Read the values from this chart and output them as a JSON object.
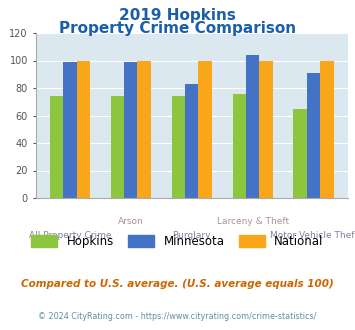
{
  "title_line1": "2019 Hopkins",
  "title_line2": "Property Crime Comparison",
  "categories": [
    "All Property Crime",
    "Arson",
    "Burglary",
    "Larceny & Theft",
    "Motor Vehicle Theft"
  ],
  "row1_labels": [
    "",
    "Arson",
    "",
    "Larceny & Theft",
    ""
  ],
  "row2_labels": [
    "All Property Crime",
    "",
    "Burglary",
    "",
    "Motor Vehicle Theft"
  ],
  "hopkins": [
    74,
    74,
    74,
    76,
    65
  ],
  "minnesota": [
    99,
    99,
    83,
    104,
    91
  ],
  "national": [
    100,
    100,
    100,
    100,
    100
  ],
  "colors": {
    "hopkins": "#8cc63f",
    "minnesota": "#4472c4",
    "national": "#faa61a"
  },
  "ylim": [
    0,
    120
  ],
  "yticks": [
    0,
    20,
    40,
    60,
    80,
    100,
    120
  ],
  "title_color": "#1a5fa8",
  "row1_color": "#b09090",
  "row2_color": "#8080a8",
  "background_color": "#dce8ef",
  "legend_labels": [
    "Hopkins",
    "Minnesota",
    "National"
  ],
  "footnote1": "Compared to U.S. average. (U.S. average equals 100)",
  "footnote2": "© 2024 CityRating.com - https://www.cityrating.com/crime-statistics/",
  "footnote1_color": "#cc6600",
  "footnote2_color": "#6090a0"
}
